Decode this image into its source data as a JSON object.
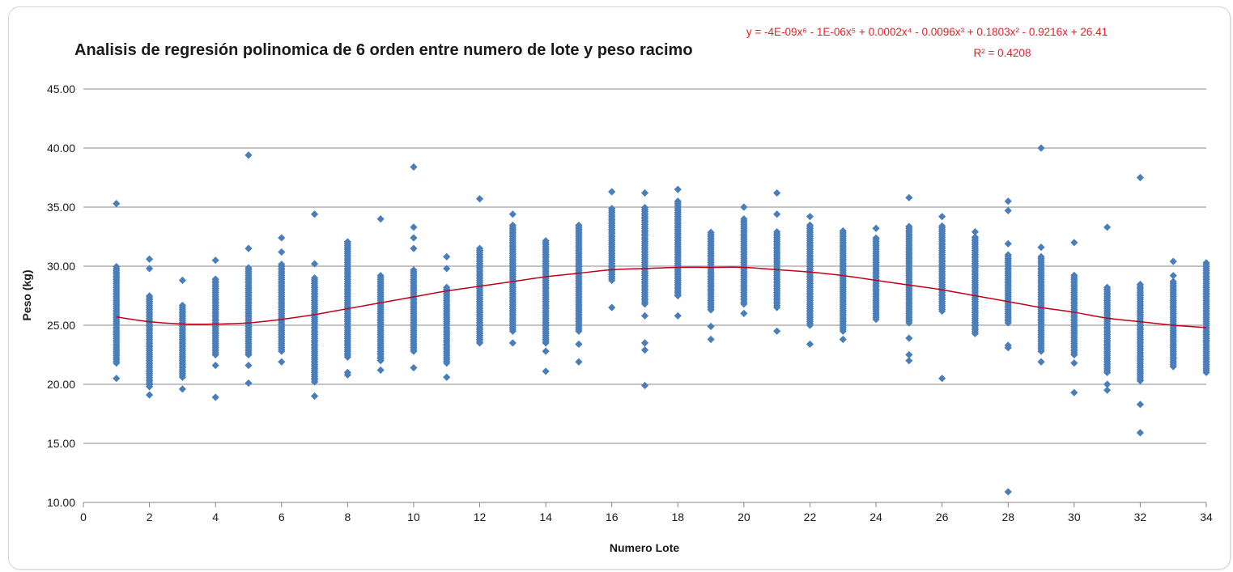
{
  "colors": {
    "points": "#4a7ebb",
    "trend": "#c0001a",
    "equation": "#e8202a",
    "grid": "#8a8a8a",
    "axis": "#868686"
  },
  "chart_data": {
    "type": "scatter",
    "title": "Analisis de regresión polinomica de 6 orden  entre numero de lote y peso racimo",
    "xlabel": "Numero Lote",
    "ylabel": "Peso (kg)",
    "xlim": [
      0,
      34
    ],
    "ylim": [
      10,
      45
    ],
    "x_ticks": [
      "0",
      "2",
      "4",
      "6",
      "8",
      "10",
      "12",
      "14",
      "16",
      "18",
      "20",
      "22",
      "24",
      "26",
      "28",
      "30",
      "32",
      "34"
    ],
    "y_ticks": [
      "10.00",
      "15.00",
      "20.00",
      "25.00",
      "30.00",
      "35.00",
      "40.00",
      "45.00"
    ],
    "grid": "horizontal",
    "trendline": {
      "type": "polynomial",
      "order": 6,
      "equation": "y = -4E-09x⁶ - 1E-06x⁵ + 0.0002x⁴ - 0.0096x³ + 0.1803x² - 0.9216x + 26.41",
      "r_squared_label": "R² = 0.4208",
      "points": [
        [
          1,
          25.7
        ],
        [
          2,
          25.3
        ],
        [
          3,
          25.1
        ],
        [
          4,
          25.1
        ],
        [
          5,
          25.2
        ],
        [
          6,
          25.5
        ],
        [
          7,
          25.9
        ],
        [
          8,
          26.4
        ],
        [
          9,
          26.9
        ],
        [
          10,
          27.4
        ],
        [
          11,
          27.9
        ],
        [
          12,
          28.3
        ],
        [
          13,
          28.7
        ],
        [
          14,
          29.1
        ],
        [
          15,
          29.4
        ],
        [
          16,
          29.7
        ],
        [
          17,
          29.8
        ],
        [
          18,
          29.9
        ],
        [
          19,
          29.9
        ],
        [
          20,
          29.9
        ],
        [
          21,
          29.7
        ],
        [
          22,
          29.5
        ],
        [
          23,
          29.2
        ],
        [
          24,
          28.8
        ],
        [
          25,
          28.4
        ],
        [
          26,
          28.0
        ],
        [
          27,
          27.5
        ],
        [
          28,
          27.0
        ],
        [
          29,
          26.5
        ],
        [
          30,
          26.1
        ],
        [
          31,
          25.6
        ],
        [
          32,
          25.3
        ],
        [
          33,
          25.0
        ],
        [
          34,
          24.8
        ]
      ]
    },
    "series": [
      {
        "marker": "diamond",
        "groups": [
          {
            "x": 1,
            "min": 21.8,
            "max": 30.0,
            "outliers": [
              20.5,
              35.3
            ]
          },
          {
            "x": 2,
            "min": 19.8,
            "max": 27.5,
            "outliers": [
              19.1,
              29.8,
              30.6
            ]
          },
          {
            "x": 3,
            "min": 20.6,
            "max": 26.8,
            "outliers": [
              19.6,
              28.8
            ]
          },
          {
            "x": 4,
            "min": 22.5,
            "max": 29.0,
            "outliers": [
              18.9,
              21.6,
              30.5
            ]
          },
          {
            "x": 5,
            "min": 22.5,
            "max": 30.0,
            "outliers": [
              20.1,
              21.6,
              31.5,
              39.4
            ]
          },
          {
            "x": 6,
            "min": 22.8,
            "max": 30.2,
            "outliers": [
              21.9,
              31.2,
              32.4
            ]
          },
          {
            "x": 7,
            "min": 20.2,
            "max": 29.0,
            "outliers": [
              19.0,
              30.2,
              34.4
            ]
          },
          {
            "x": 8,
            "min": 22.3,
            "max": 32.2,
            "outliers": [
              20.8,
              21.0
            ]
          },
          {
            "x": 9,
            "min": 22.0,
            "max": 29.2,
            "outliers": [
              21.2,
              34.0
            ]
          },
          {
            "x": 10,
            "min": 22.8,
            "max": 29.8,
            "outliers": [
              21.4,
              31.5,
              32.4,
              33.3,
              38.4
            ]
          },
          {
            "x": 11,
            "min": 21.8,
            "max": 28.3,
            "outliers": [
              20.6,
              29.8,
              30.8
            ]
          },
          {
            "x": 12,
            "min": 23.5,
            "max": 31.5,
            "outliers": [
              35.7
            ]
          },
          {
            "x": 13,
            "min": 24.5,
            "max": 33.5,
            "outliers": [
              23.5,
              34.4
            ]
          },
          {
            "x": 14,
            "min": 23.5,
            "max": 32.2,
            "outliers": [
              21.1,
              22.8
            ]
          },
          {
            "x": 15,
            "min": 24.5,
            "max": 33.5,
            "outliers": [
              21.9,
              23.4
            ]
          },
          {
            "x": 16,
            "min": 28.8,
            "max": 35.0,
            "outliers": [
              26.5,
              36.3
            ]
          },
          {
            "x": 17,
            "min": 26.8,
            "max": 35.0,
            "outliers": [
              19.9,
              22.9,
              23.5,
              25.8,
              36.2
            ]
          },
          {
            "x": 18,
            "min": 27.5,
            "max": 35.5,
            "outliers": [
              25.8,
              36.5
            ]
          },
          {
            "x": 19,
            "min": 26.3,
            "max": 33.0,
            "outliers": [
              23.8,
              24.9
            ]
          },
          {
            "x": 20,
            "min": 26.8,
            "max": 34.0,
            "outliers": [
              26.0,
              35.0
            ]
          },
          {
            "x": 21,
            "min": 26.5,
            "max": 33.0,
            "outliers": [
              24.5,
              34.4,
              36.2
            ]
          },
          {
            "x": 22,
            "min": 25.0,
            "max": 33.5,
            "outliers": [
              23.4,
              34.2
            ]
          },
          {
            "x": 23,
            "min": 24.5,
            "max": 33.0,
            "outliers": [
              23.8
            ]
          },
          {
            "x": 24,
            "min": 25.5,
            "max": 32.5,
            "outliers": [
              33.2
            ]
          },
          {
            "x": 25,
            "min": 25.2,
            "max": 33.5,
            "outliers": [
              22.0,
              22.5,
              23.9,
              35.8
            ]
          },
          {
            "x": 26,
            "min": 26.2,
            "max": 33.5,
            "outliers": [
              20.5,
              34.2
            ]
          },
          {
            "x": 27,
            "min": 24.3,
            "max": 32.5,
            "outliers": [
              32.9
            ]
          },
          {
            "x": 28,
            "min": 25.2,
            "max": 31.0,
            "outliers": [
              10.9,
              23.1,
              23.3,
              31.9,
              34.7,
              35.5
            ]
          },
          {
            "x": 29,
            "min": 22.8,
            "max": 30.8,
            "outliers": [
              21.9,
              31.6,
              40.0
            ]
          },
          {
            "x": 30,
            "min": 22.5,
            "max": 29.3,
            "outliers": [
              19.3,
              21.8,
              32.0
            ]
          },
          {
            "x": 31,
            "min": 21.0,
            "max": 28.3,
            "outliers": [
              19.5,
              20.0,
              33.3
            ]
          },
          {
            "x": 32,
            "min": 20.3,
            "max": 28.5,
            "outliers": [
              15.9,
              18.3,
              37.5
            ]
          },
          {
            "x": 33,
            "min": 21.5,
            "max": 28.8,
            "outliers": [
              29.2,
              30.4
            ]
          },
          {
            "x": 34,
            "min": 21.0,
            "max": 30.3,
            "outliers": []
          }
        ]
      }
    ]
  }
}
